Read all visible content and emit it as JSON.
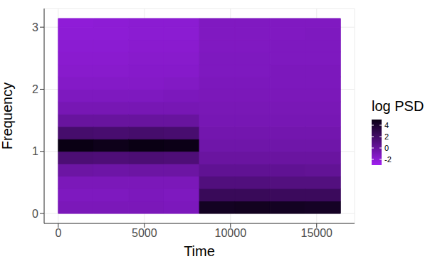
{
  "chart_data": {
    "type": "heatmap",
    "x_label": "Time",
    "y_label": "Frequency",
    "xlim": [
      -820,
      17200
    ],
    "xticks": [
      0,
      5000,
      10000,
      15000
    ],
    "ylim": [
      -0.16,
      3.3
    ],
    "yticks": [
      0,
      1,
      2,
      3
    ],
    "grid": true,
    "legend": "right",
    "heatmap": {
      "x_edges": [
        0,
        2048,
        4096,
        6144,
        8192,
        10240,
        12288,
        14336,
        16384
      ],
      "y_edges": [
        0,
        0.2,
        0.4,
        0.6,
        0.8,
        1.0,
        1.2,
        1.4,
        1.6,
        1.8,
        2.0,
        2.2,
        2.4,
        2.6,
        2.8,
        3.0,
        3.14
      ],
      "cells": [
        [
          -1.0,
          -1.2,
          -1.0,
          -0.2,
          1.5,
          5.0,
          1.8,
          0.0,
          -0.8,
          -1.2,
          -1.5,
          -1.7,
          -1.8,
          -1.9,
          -2.0,
          -2.1
        ],
        [
          -1.0,
          -1.2,
          -1.0,
          -0.3,
          1.4,
          4.8,
          1.7,
          0.0,
          -0.8,
          -1.2,
          -1.5,
          -1.7,
          -1.8,
          -1.9,
          -2.0,
          -2.0
        ],
        [
          -1.0,
          -1.1,
          -1.0,
          -0.2,
          1.5,
          5.0,
          1.8,
          0.0,
          -0.8,
          -1.2,
          -1.5,
          -1.6,
          -1.7,
          -1.8,
          -1.9,
          -1.9
        ],
        [
          -1.1,
          -1.2,
          -1.0,
          -0.2,
          1.4,
          4.9,
          1.7,
          0.0,
          -0.8,
          -1.1,
          -1.4,
          -1.6,
          -1.7,
          -1.8,
          -1.9,
          -1.9
        ],
        [
          4.5,
          2.5,
          1.2,
          0.4,
          -0.1,
          -0.4,
          -0.6,
          -0.8,
          -0.9,
          -1.0,
          -1.1,
          -1.2,
          -1.2,
          -1.3,
          -1.3,
          -1.3
        ],
        [
          4.6,
          2.5,
          1.2,
          0.4,
          -0.1,
          -0.4,
          -0.6,
          -0.8,
          -0.9,
          -1.0,
          -1.1,
          -1.2,
          -1.2,
          -1.3,
          -1.3,
          -1.3
        ],
        [
          4.5,
          2.4,
          1.1,
          0.4,
          -0.1,
          -0.4,
          -0.6,
          -0.8,
          -0.9,
          -1.0,
          -1.1,
          -1.1,
          -1.2,
          -1.2,
          -1.3,
          -1.3
        ],
        [
          4.4,
          2.4,
          1.1,
          0.3,
          -0.1,
          -0.4,
          -0.6,
          -0.8,
          -0.9,
          -1.0,
          -1.1,
          -1.1,
          -1.2,
          -1.2,
          -1.2,
          -1.3
        ]
      ]
    },
    "colorbar": {
      "title": "log PSD",
      "range": [
        -3,
        5
      ],
      "ticks": [
        -2,
        0,
        2,
        4
      ]
    }
  }
}
